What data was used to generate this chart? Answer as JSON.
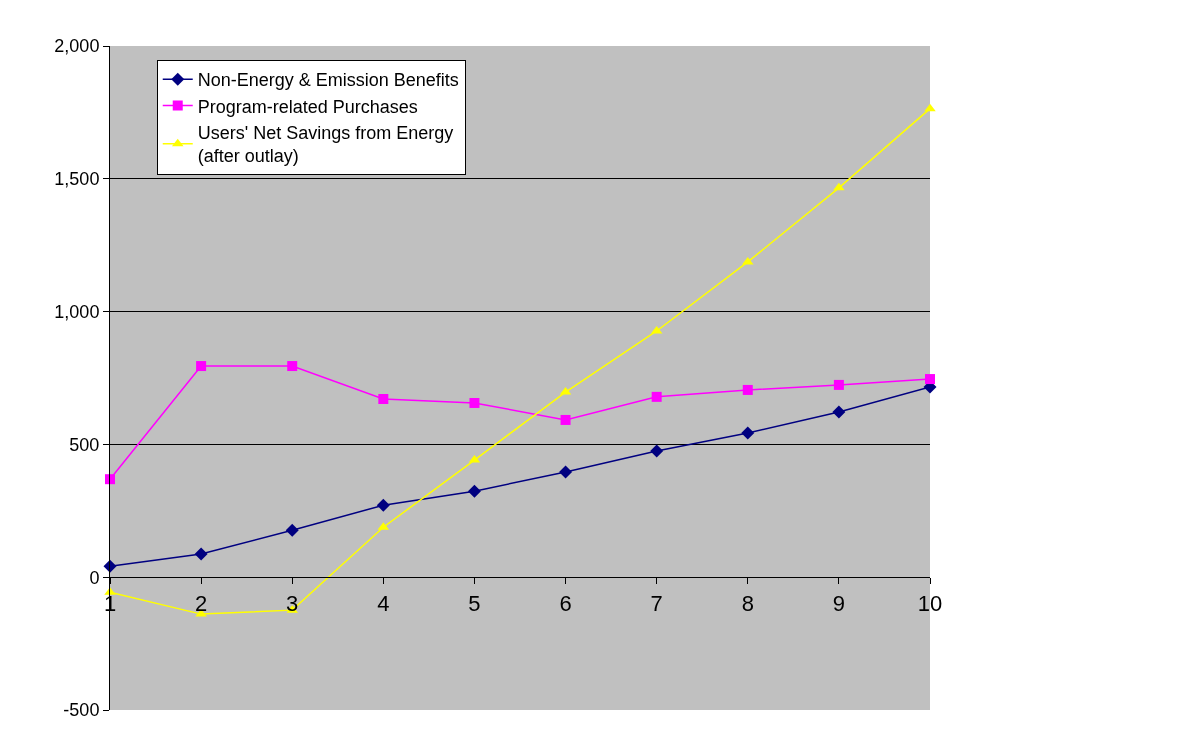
{
  "chart_data": {
    "type": "line",
    "x": [
      1,
      2,
      3,
      4,
      5,
      6,
      7,
      8,
      9,
      10
    ],
    "series": [
      {
        "name": "Non-Energy & Emission Benefits",
        "color": "#000080",
        "marker": "diamond",
        "values": [
          41,
          87,
          177,
          271,
          324,
          396,
          475,
          543,
          622,
          716
        ]
      },
      {
        "name": "Program-related Purchases",
        "color": "#ff00ff",
        "marker": "square",
        "values": [
          369,
          795,
          795,
          671,
          656,
          592,
          679,
          705,
          724,
          746
        ]
      },
      {
        "name": "Users' Net Savings from Energy (after outlay)",
        "color": "#ffff00",
        "marker": "triangle",
        "values": [
          -57,
          -139,
          -124,
          188,
          441,
          697,
          927,
          1187,
          1466,
          1764
        ]
      }
    ],
    "xlim": [
      1,
      10
    ],
    "xticks": [
      1,
      2,
      3,
      4,
      5,
      6,
      7,
      8,
      9,
      10
    ],
    "ylim": [
      -500,
      2000
    ],
    "yticks": [
      {
        "value": -500,
        "label": "-500"
      },
      {
        "value": 0,
        "label": "0"
      },
      {
        "value": 500,
        "label": "500"
      },
      {
        "value": 1000,
        "label": "1,000"
      },
      {
        "value": 1500,
        "label": "1,500"
      },
      {
        "value": 2000,
        "label": "2,000"
      }
    ],
    "grid": "y",
    "legend": "top left",
    "line_style": "solid"
  }
}
